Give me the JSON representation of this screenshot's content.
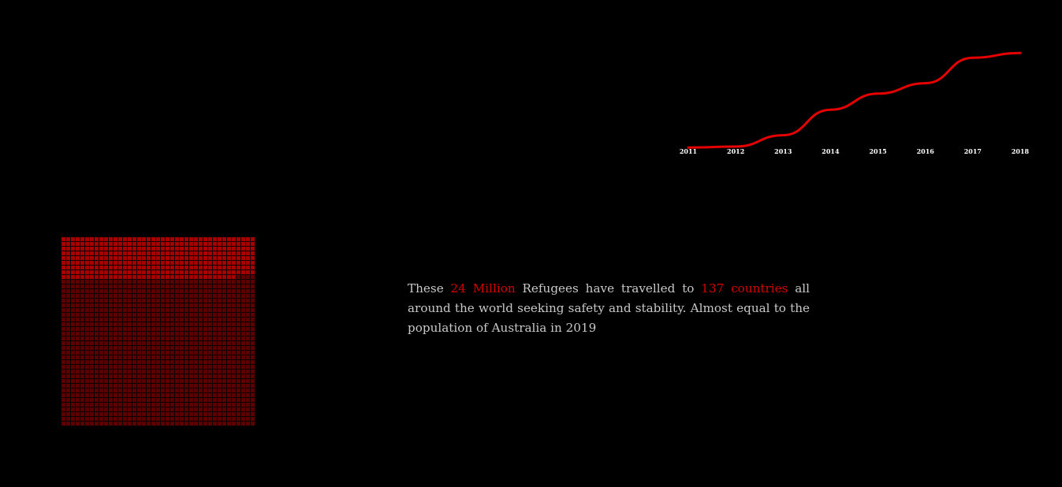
{
  "caption": {
    "part1": "These ",
    "highlight1": "24 Million",
    "part2": " Refugees have travelled to ",
    "highlight2": "137 countries",
    "part3": " all around the world seeking safety and stability. Almost equal to the population of Australia in 2019"
  },
  "colors": {
    "line": "#e60000",
    "highlight": "#d40000",
    "text": "#c8c8c8",
    "waffle_bright": "#a80000",
    "waffle_dark": "#5c0000",
    "background": "#000000"
  },
  "chart_data": [
    {
      "type": "line",
      "title": "",
      "xlabel": "",
      "ylabel": "",
      "categories": [
        "2011",
        "2012",
        "2013",
        "2014",
        "2015",
        "2016",
        "2017",
        "2018"
      ],
      "values": [
        10.4,
        10.5,
        11.7,
        14.4,
        16.1,
        17.2,
        19.9,
        20.4
      ],
      "ylim": [
        10,
        21
      ],
      "grid": false,
      "y_axis_visible": false
    },
    {
      "type": "waffle",
      "title": "",
      "columns": 41,
      "rows": 40,
      "cells_total": 1640,
      "groups": [
        {
          "color": "#a80000",
          "cells": 365
        },
        {
          "color": "#5c0000",
          "cells": 1275
        }
      ]
    }
  ]
}
